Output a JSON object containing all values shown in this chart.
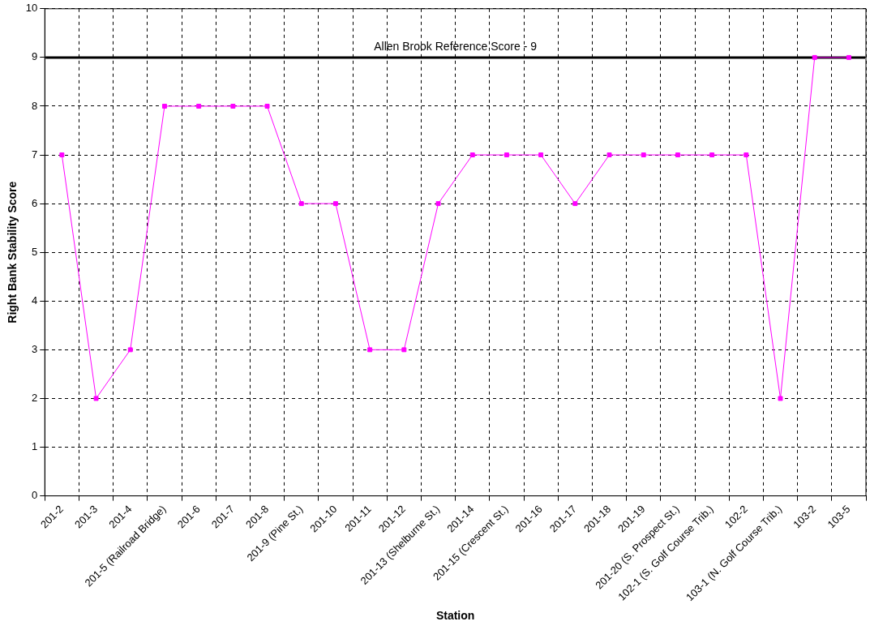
{
  "chart_data": {
    "type": "line",
    "xlabel": "Station",
    "ylabel": "Right Bank Stability Score",
    "categories": [
      "201-2",
      "201-3",
      "201-4",
      "201-5 (Railroad Bridge)",
      "201-6",
      "201-7",
      "201-8",
      "201-9 (Pine St.)",
      "201-10",
      "201-11",
      "201-12",
      "201-13 (Shelburne St.)",
      "201-14",
      "201-15 (Crescent St.)",
      "201-16",
      "201-17",
      "201-18",
      "201-19",
      "201-20 (S. Prospect St.)",
      "102-1 (S. Golf Course Trib.)",
      "102-2",
      "103-1 (N. Golf Course Trib.)",
      "103-2",
      "103-5"
    ],
    "series": [
      {
        "color": "#ff00ff",
        "values": [
          7,
          2,
          3,
          8,
          8,
          8,
          8,
          6,
          6,
          3,
          3,
          6,
          7,
          7,
          7,
          6,
          7,
          7,
          7,
          7,
          7,
          2,
          9,
          9
        ]
      }
    ],
    "ylim": [
      0,
      10
    ],
    "yticks": [
      0,
      1,
      2,
      3,
      4,
      5,
      6,
      7,
      8,
      9,
      10
    ],
    "grid": true,
    "marker": "square",
    "line_style": "solid",
    "legend": false,
    "ref_lines": [
      {
        "axis": "y",
        "value": 9,
        "label": "Allen Brook Reference Score - 9",
        "color": "#000000"
      }
    ]
  }
}
